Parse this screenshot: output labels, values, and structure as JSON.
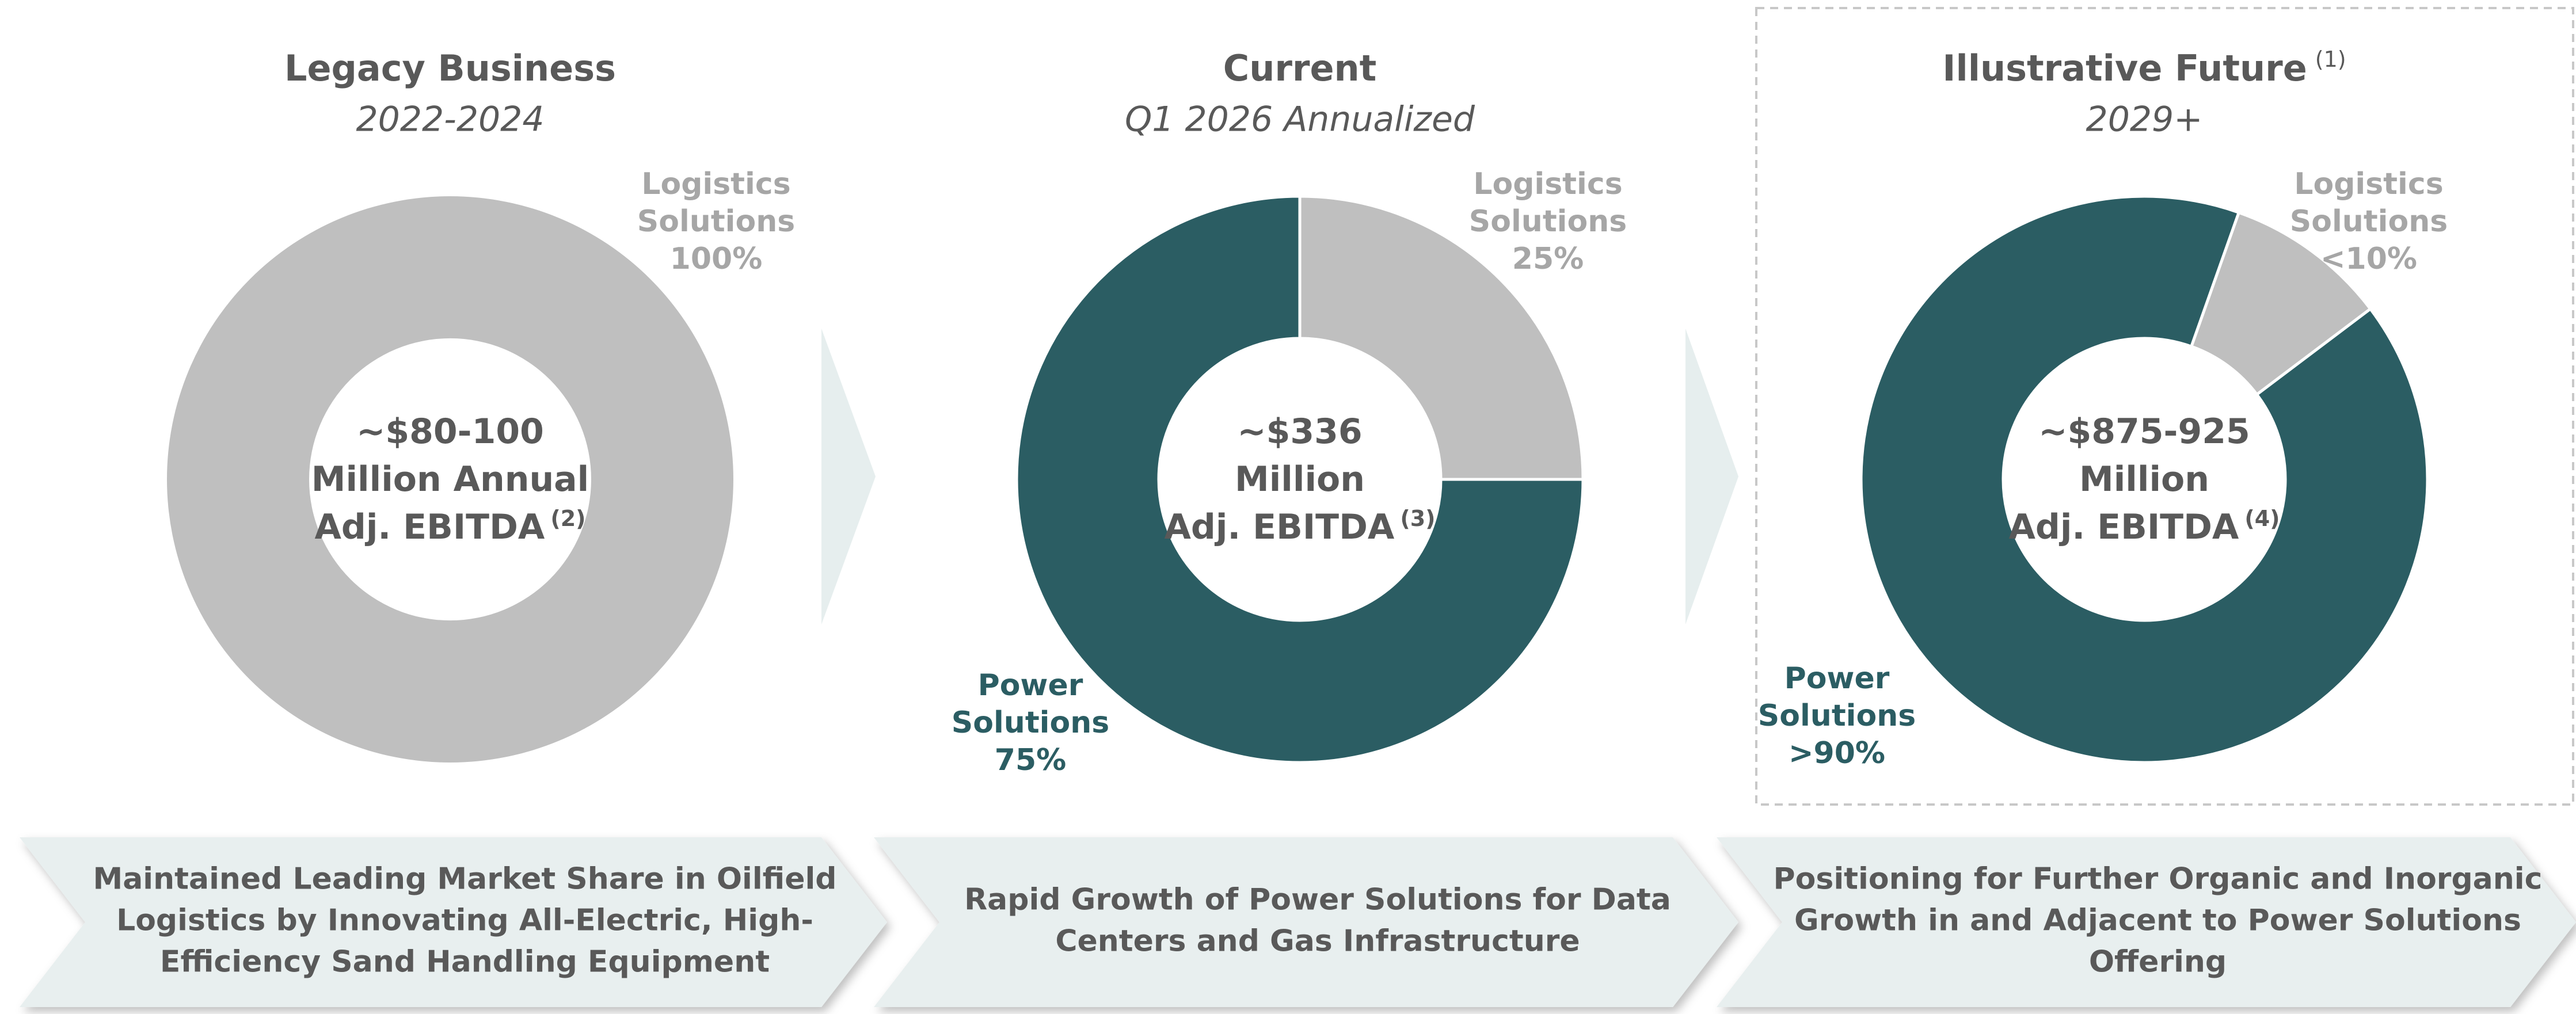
{
  "chart_data": [
    {
      "type": "pie",
      "title": "Legacy Business",
      "subtitle": "2022-2024",
      "categories": [
        "Logistics Solutions"
      ],
      "values": [
        100
      ],
      "value_labels": [
        "100%"
      ],
      "colors": [
        "#bfbfbf"
      ],
      "start_angle": 0,
      "center_text": [
        "~$80-100",
        "Million Annual",
        "Adj. EBITDA"
      ],
      "center_note": "(2)"
    },
    {
      "type": "pie",
      "title": "Current",
      "subtitle": "Q1 2026 Annualized",
      "categories": [
        "Logistics Solutions",
        "Power Solutions"
      ],
      "values": [
        25,
        75
      ],
      "value_labels": [
        "25%",
        "75%"
      ],
      "colors": [
        "#bfbfbf",
        "#2b5d63"
      ],
      "start_angle": 0,
      "center_text": [
        "~$336",
        "Million",
        "Adj. EBITDA"
      ],
      "center_note": "(3)"
    },
    {
      "type": "pie",
      "title": "Illustrative Future",
      "title_note": "(1)",
      "subtitle": "2029+",
      "categories": [
        "Logistics Solutions",
        "Power Solutions"
      ],
      "values": [
        9.3,
        90.7
      ],
      "value_labels": [
        "<10%",
        ">90%"
      ],
      "colors": [
        "#bfbfbf",
        "#2b5d63"
      ],
      "start_angle": 19.5,
      "center_text": [
        "~$875-925",
        "Million",
        "Adj. EBITDA"
      ],
      "center_note": "(4)"
    }
  ],
  "banners": [
    [
      "Maintained Leading Market Share in Oilfield",
      "Logistics by Innovating All-Electric, High-",
      "Efficiency Sand Handling Equipment"
    ],
    [
      "Rapid Growth of Power Solutions for Data",
      "Centers and Gas Infrastructure"
    ],
    [
      "Positioning for Further Organic and Inorganic",
      "Growth in and Adjacent to Power Solutions",
      "Offering"
    ]
  ]
}
